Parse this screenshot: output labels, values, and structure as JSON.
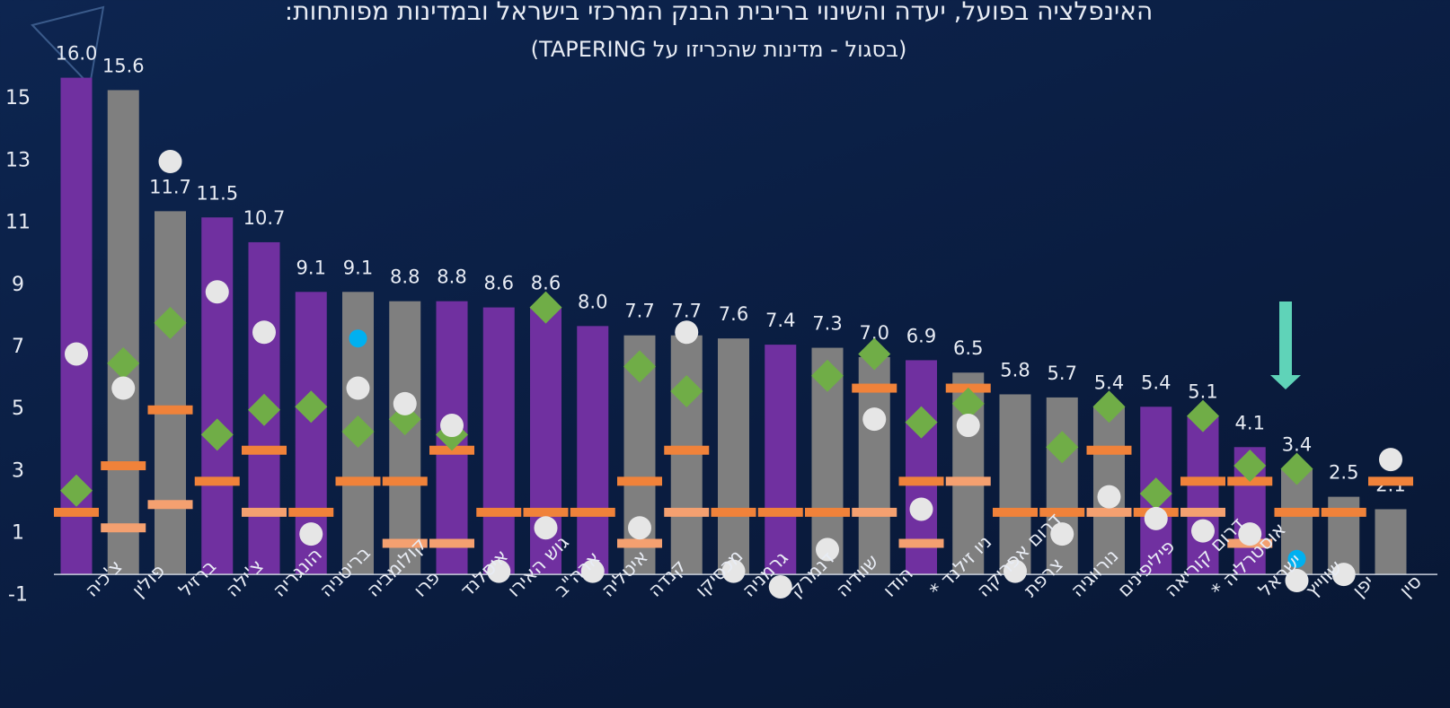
{
  "chart_data": {
    "type": "bar",
    "title": "האינפלציה בפועל, יעדה והשינוי בריבית הבנק המרכזי בישראל ובמדינות מפותחות:",
    "subtitle": "(בסגול - מדינות שהכריזו על TAPERING)",
    "categories": [
      "צ'כיה",
      "פולין",
      "ברזיל",
      "צ'ילה",
      "הונגריה",
      "בריטניה",
      "קולומביה",
      "פרו",
      "איסלנד",
      "גוש האירו",
      "ארה\"ב",
      "איטליה",
      "קנדה",
      "מכסיקו",
      "גרמניה",
      "דנמרק",
      "שוודיה",
      "הודו",
      "ניו זילנד *",
      "דרום אפריקה",
      "צרפת",
      "נורווגיה",
      "פיליפינים",
      "דרום קוריאה",
      "אוסטרליה *",
      "ישראל",
      "שווייץ",
      "יפן",
      "סין"
    ],
    "ylim": [
      -1.5,
      17
    ],
    "yticks": [
      -1,
      1,
      3,
      5,
      7,
      9,
      11,
      13,
      15
    ],
    "series": [
      {
        "marker": "bar",
        "values": [
          16.0,
          15.6,
          11.7,
          11.5,
          10.7,
          9.1,
          9.1,
          8.8,
          8.8,
          8.6,
          8.6,
          8.0,
          7.7,
          7.7,
          7.6,
          7.4,
          7.3,
          7.0,
          6.9,
          6.5,
          5.8,
          5.7,
          5.4,
          5.4,
          5.1,
          4.1,
          3.4,
          2.5,
          2.1
        ],
        "value_labels": [
          "16.0",
          "15.6",
          "11.7",
          "11.5",
          "10.7",
          "9.1",
          "9.1",
          "8.8",
          "8.8",
          "8.6",
          "8.6",
          "8.0",
          "7.7",
          "7.7",
          "7.6",
          "7.4",
          "7.3",
          "7.0",
          "6.9",
          "6.5",
          "5.8",
          "5.7",
          "5.4",
          "5.4",
          "5.1",
          "4.1",
          "3.4",
          "2.5",
          "2.1"
        ],
        "colors": [
          "#7030a0",
          "#7f7f7f",
          "#7f7f7f",
          "#7030a0",
          "#7030a0",
          "#7030a0",
          "#7f7f7f",
          "#7f7f7f",
          "#7030a0",
          "#7030a0",
          "#7030a0",
          "#7030a0",
          "#7f7f7f",
          "#7f7f7f",
          "#7f7f7f",
          "#7030a0",
          "#7f7f7f",
          "#7f7f7f",
          "#7030a0",
          "#7f7f7f",
          "#7f7f7f",
          "#7f7f7f",
          "#7f7f7f",
          "#7030a0",
          "#7030a0",
          "#7030a0",
          "#7f7f7f",
          "#7f7f7f",
          "#7f7f7f"
        ]
      },
      {
        "marker": "dash",
        "color": "#f0823a",
        "values": [
          2.0,
          3.5,
          5.3,
          3.0,
          4.0,
          2.0,
          3.0,
          3.0,
          4.0,
          2.0,
          2.0,
          2.0,
          3.0,
          4.0,
          2.0,
          2.0,
          2.0,
          6.0,
          3.0,
          6.0,
          2.0,
          2.0,
          4.0,
          2.0,
          3.0,
          3.0,
          2.0,
          2.0,
          3.0
        ]
      },
      {
        "marker": "dash",
        "color": "#f4a070",
        "values": [
          null,
          1.5,
          2.25,
          null,
          2.0,
          null,
          null,
          1.0,
          1.0,
          null,
          null,
          null,
          1.0,
          2.0,
          null,
          null,
          null,
          2.0,
          1.0,
          3.0,
          null,
          null,
          2.0,
          null,
          2.0,
          1.0,
          null,
          null,
          null
        ]
      },
      {
        "marker": "diamond",
        "color": "#70ad47",
        "values": [
          2.7,
          6.8,
          8.1,
          4.5,
          5.3,
          5.4,
          4.6,
          5.0,
          4.5,
          null,
          8.6,
          null,
          6.7,
          5.9,
          null,
          null,
          6.4,
          7.1,
          4.9,
          5.5,
          null,
          4.1,
          5.4,
          2.6,
          5.1,
          3.5,
          3.4,
          null,
          null
        ]
      },
      {
        "marker": "circle",
        "color": "#e6e6e6",
        "values": [
          7.1,
          6.0,
          13.3,
          9.1,
          7.8,
          1.3,
          6.0,
          5.5,
          4.8,
          0.1,
          1.5,
          0.1,
          1.5,
          7.8,
          0.1,
          -0.4,
          0.8,
          5.0,
          2.1,
          4.8,
          0.1,
          1.3,
          2.5,
          1.8,
          1.4,
          1.3,
          -0.2,
          0.0,
          3.7
        ]
      },
      {
        "marker": "dot",
        "color": "#00b0f0",
        "values": [
          null,
          null,
          null,
          null,
          null,
          null,
          7.6,
          null,
          null,
          null,
          null,
          null,
          null,
          null,
          null,
          null,
          null,
          null,
          null,
          null,
          null,
          null,
          null,
          null,
          null,
          null,
          0.5,
          null,
          null
        ]
      }
    ]
  }
}
